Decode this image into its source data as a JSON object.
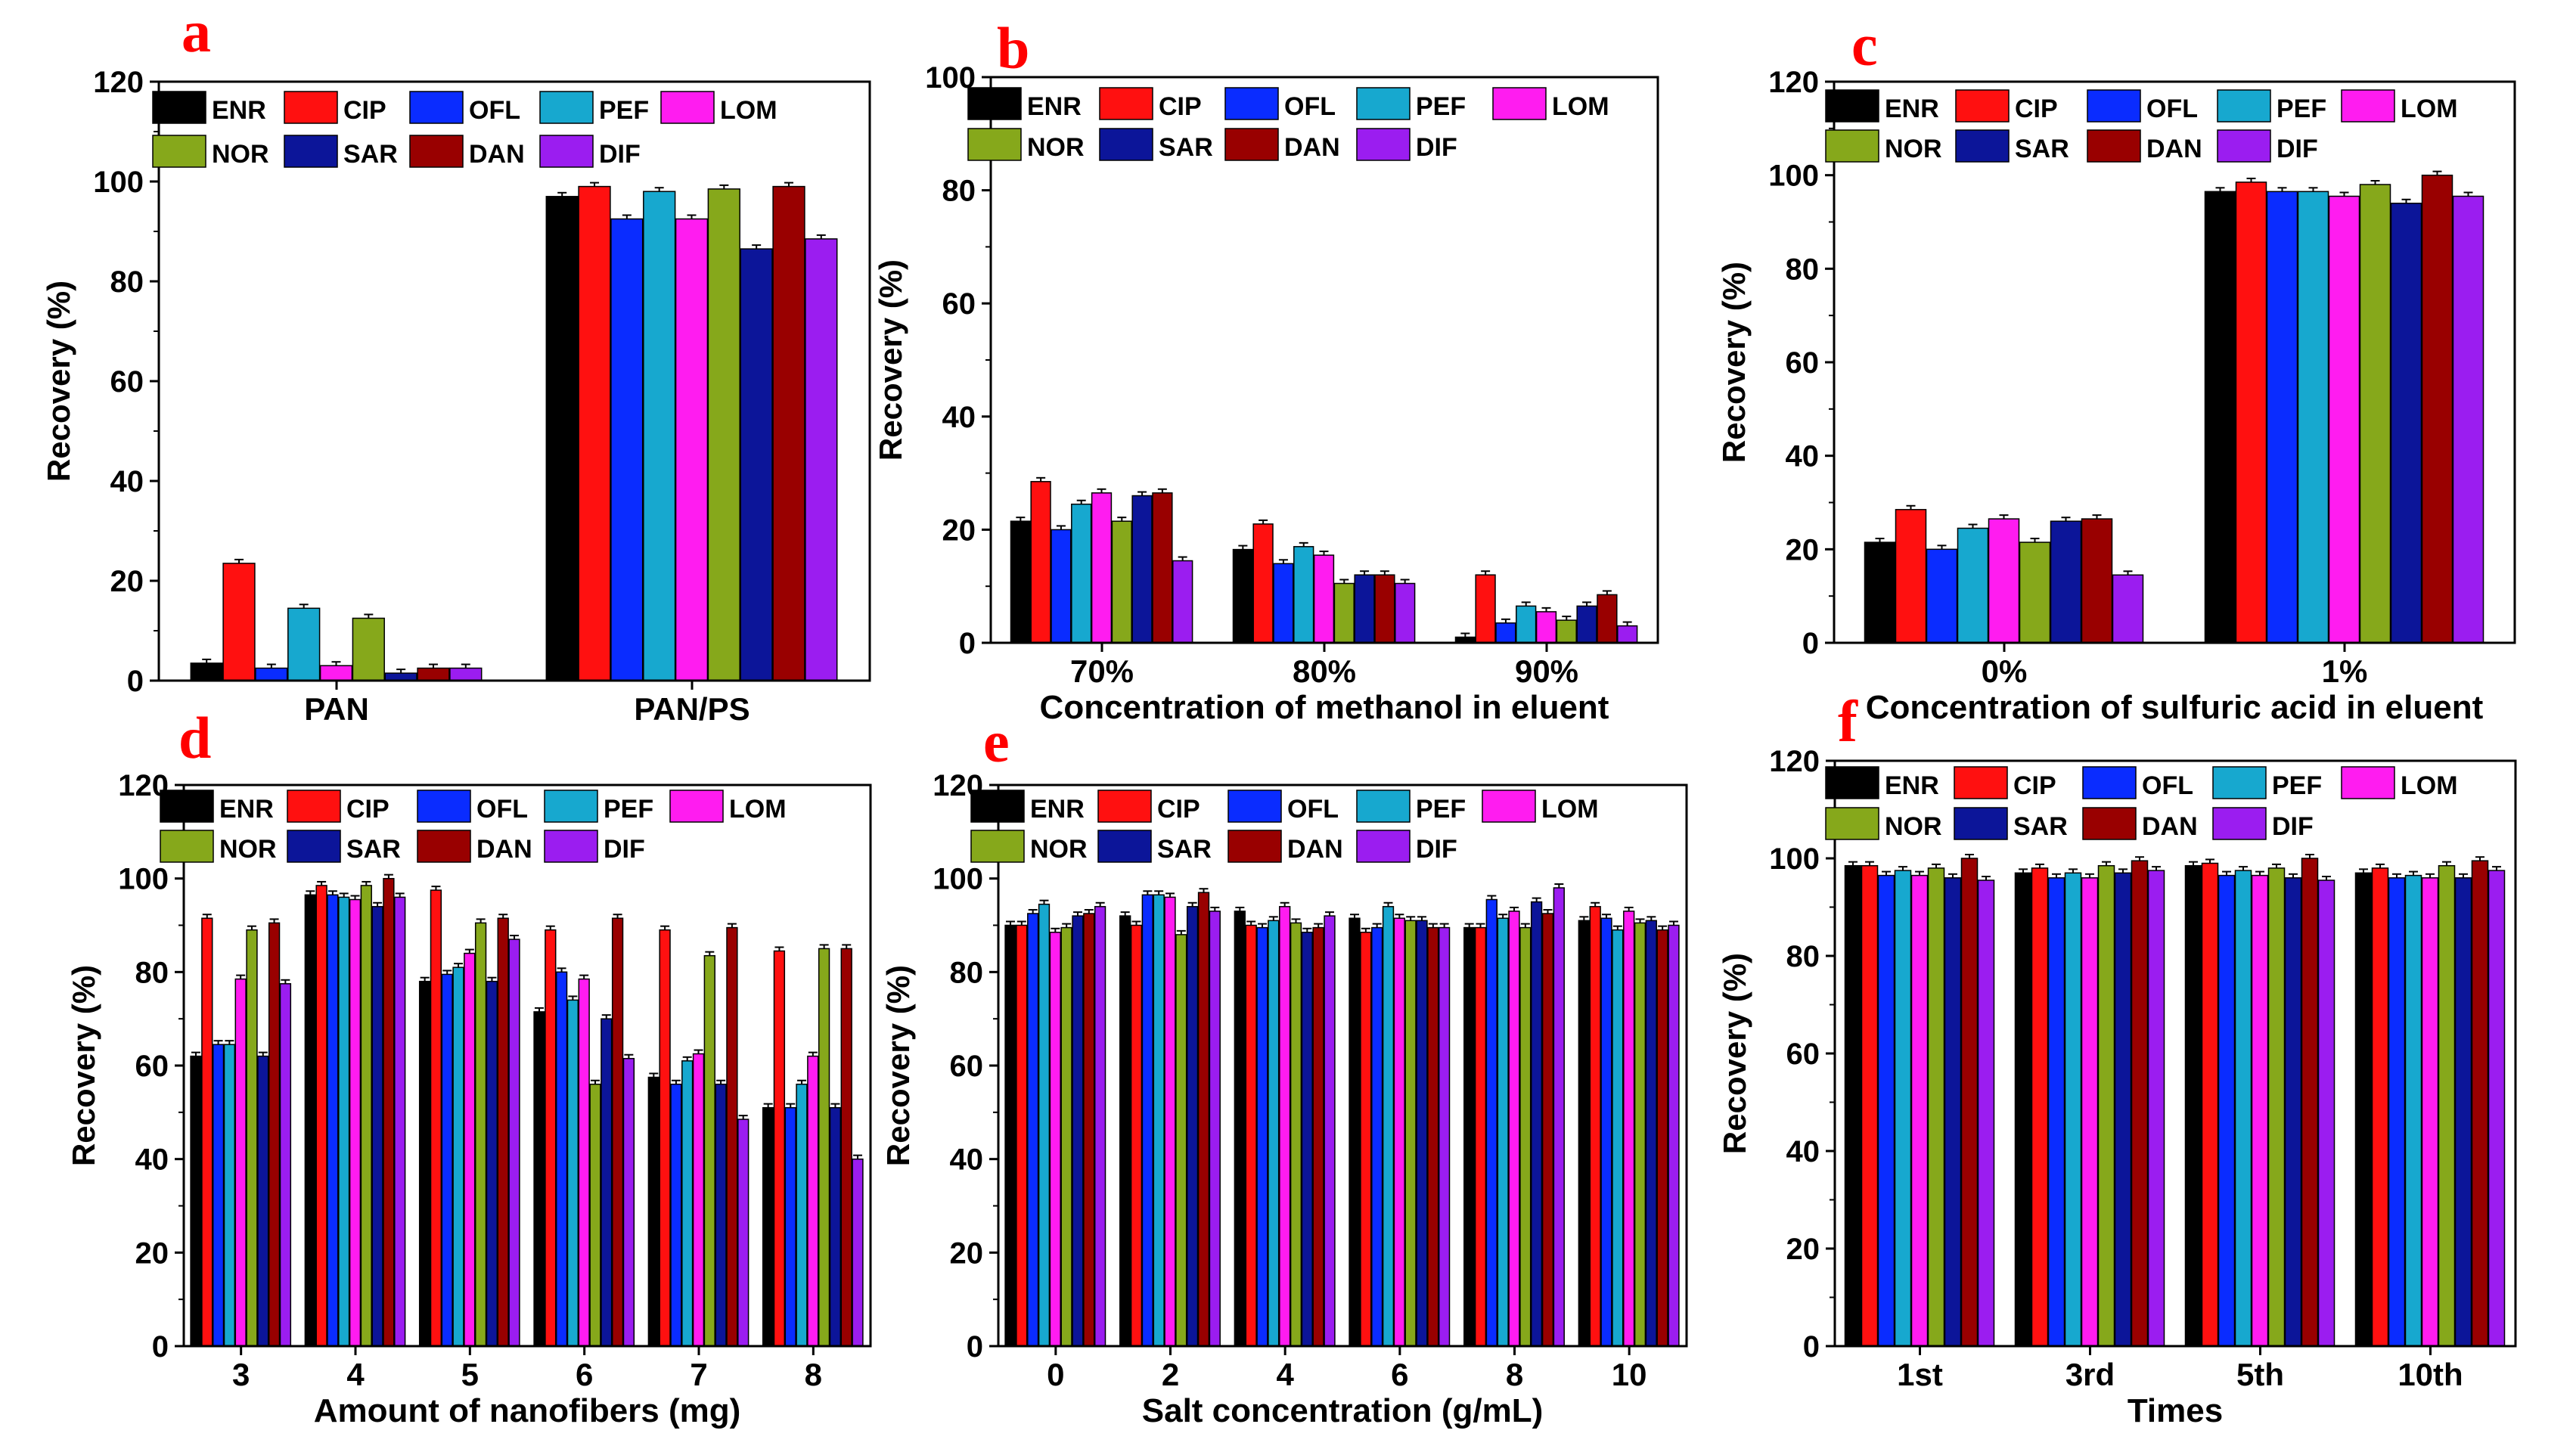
{
  "figure": {
    "series_names": [
      "ENR",
      "CIP",
      "OFL",
      "PEF",
      "LOM",
      "NOR",
      "SAR",
      "DAN",
      "DIF"
    ],
    "colors": {
      "ENR": "#000000",
      "CIP": "#ff1010",
      "OFL": "#0a2cff",
      "PEF": "#17a8cf",
      "LOM": "#ff1cf0",
      "NOR": "#86a81b",
      "SAR": "#0c1599",
      "DAN": "#990000",
      "DIF": "#9b1df0",
      "panel_letter": "#ff0000"
    }
  },
  "chart_data": [
    {
      "panel": "a",
      "type": "bar",
      "title": "",
      "xlabel": "",
      "ylabel": "Recovery (%)",
      "ylim": [
        0,
        120
      ],
      "yticks": [
        0,
        20,
        40,
        60,
        80,
        100,
        120
      ],
      "categories": [
        "PAN",
        "PAN/PS"
      ],
      "legend": [
        "ENR",
        "CIP",
        "OFL",
        "PEF",
        "LOM",
        "NOR",
        "SAR",
        "DAN",
        "DIF"
      ],
      "series": [
        {
          "name": "ENR",
          "values": [
            3.5,
            97
          ]
        },
        {
          "name": "CIP",
          "values": [
            23.5,
            99
          ]
        },
        {
          "name": "OFL",
          "values": [
            2.5,
            92.5
          ]
        },
        {
          "name": "PEF",
          "values": [
            14.5,
            98
          ]
        },
        {
          "name": "LOM",
          "values": [
            3,
            92.5
          ]
        },
        {
          "name": "NOR",
          "values": [
            12.5,
            98.5
          ]
        },
        {
          "name": "SAR",
          "values": [
            1.5,
            86.5
          ]
        },
        {
          "name": "DAN",
          "values": [
            2.5,
            99
          ]
        },
        {
          "name": "DIF",
          "values": [
            2.5,
            88.5
          ]
        }
      ]
    },
    {
      "panel": "b",
      "type": "bar",
      "title": "",
      "xlabel": "Concentration of methanol in eluent",
      "ylabel": "Recovery (%)",
      "ylim": [
        0,
        100
      ],
      "yticks": [
        0,
        20,
        40,
        60,
        80,
        100
      ],
      "categories": [
        "70%",
        "80%",
        "90%"
      ],
      "legend": [
        "ENR",
        "CIP",
        "OFL",
        "PEF",
        "LOM",
        "NOR",
        "SAR",
        "DAN",
        "DIF"
      ],
      "series": [
        {
          "name": "ENR",
          "values": [
            21.5,
            16.5,
            1
          ]
        },
        {
          "name": "CIP",
          "values": [
            28.5,
            21,
            12
          ]
        },
        {
          "name": "OFL",
          "values": [
            20,
            14,
            3.5
          ]
        },
        {
          "name": "PEF",
          "values": [
            24.5,
            17,
            6.5
          ]
        },
        {
          "name": "LOM",
          "values": [
            26.5,
            15.5,
            5.5
          ]
        },
        {
          "name": "NOR",
          "values": [
            21.5,
            10.5,
            4
          ]
        },
        {
          "name": "SAR",
          "values": [
            26,
            12,
            6.5
          ]
        },
        {
          "name": "DAN",
          "values": [
            26.5,
            12,
            8.5
          ]
        },
        {
          "name": "DIF",
          "values": [
            14.5,
            10.5,
            3
          ]
        }
      ]
    },
    {
      "panel": "c",
      "type": "bar",
      "title": "",
      "xlabel": "Concentration of sulfuric acid in eluent",
      "ylabel": "Recovery (%)",
      "ylim": [
        0,
        120
      ],
      "yticks": [
        0,
        20,
        40,
        60,
        80,
        100,
        120
      ],
      "categories": [
        "0%",
        "1%"
      ],
      "legend": [
        "ENR",
        "CIP",
        "OFL",
        "PEF",
        "LOM",
        "NOR",
        "SAR",
        "DAN",
        "DIF"
      ],
      "series": [
        {
          "name": "ENR",
          "values": [
            21.5,
            96.5
          ]
        },
        {
          "name": "CIP",
          "values": [
            28.5,
            98.5
          ]
        },
        {
          "name": "OFL",
          "values": [
            20,
            96.5
          ]
        },
        {
          "name": "PEF",
          "values": [
            24.5,
            96.5
          ]
        },
        {
          "name": "LOM",
          "values": [
            26.5,
            95.5
          ]
        },
        {
          "name": "NOR",
          "values": [
            21.5,
            98
          ]
        },
        {
          "name": "SAR",
          "values": [
            26,
            94
          ]
        },
        {
          "name": "DAN",
          "values": [
            26.5,
            100
          ]
        },
        {
          "name": "DIF",
          "values": [
            14.5,
            95.5
          ]
        }
      ]
    },
    {
      "panel": "d",
      "type": "bar",
      "title": "",
      "xlabel": "Amount of nanofibers (mg)",
      "ylabel": "Recovery (%)",
      "ylim": [
        0,
        120
      ],
      "yticks": [
        0,
        20,
        40,
        60,
        80,
        100,
        120
      ],
      "categories": [
        "3",
        "4",
        "5",
        "6",
        "7",
        "8"
      ],
      "legend": [
        "ENR",
        "CIP",
        "OFL",
        "PEF",
        "LOM",
        "NOR",
        "SAR",
        "DAN",
        "DIF"
      ],
      "series": [
        {
          "name": "ENR",
          "values": [
            62,
            96.5,
            78,
            71.5,
            57.5,
            51
          ]
        },
        {
          "name": "CIP",
          "values": [
            91.5,
            98.5,
            97.5,
            89,
            89,
            84.5
          ]
        },
        {
          "name": "OFL",
          "values": [
            64.5,
            96.5,
            79.5,
            80,
            56,
            51
          ]
        },
        {
          "name": "PEF",
          "values": [
            64.5,
            96,
            81,
            74,
            61,
            56
          ]
        },
        {
          "name": "LOM",
          "values": [
            78.5,
            95.5,
            84,
            78.5,
            62.5,
            62
          ]
        },
        {
          "name": "NOR",
          "values": [
            89,
            98.5,
            90.5,
            56,
            83.5,
            85
          ]
        },
        {
          "name": "SAR",
          "values": [
            62,
            94,
            78,
            70,
            56,
            51
          ]
        },
        {
          "name": "DAN",
          "values": [
            90.5,
            100,
            91.5,
            91.5,
            89.5,
            85
          ]
        },
        {
          "name": "DIF",
          "values": [
            77.5,
            96,
            87,
            61.5,
            48.5,
            40
          ]
        }
      ]
    },
    {
      "panel": "e",
      "type": "bar",
      "title": "",
      "xlabel": "Salt concentration (g/mL)",
      "ylabel": "Recovery (%)",
      "ylim": [
        0,
        120
      ],
      "yticks": [
        0,
        20,
        40,
        60,
        80,
        100,
        120
      ],
      "categories": [
        "0",
        "2",
        "4",
        "6",
        "8",
        "10"
      ],
      "legend": [
        "ENR",
        "CIP",
        "OFL",
        "PEF",
        "LOM",
        "NOR",
        "SAR",
        "DAN",
        "DIF"
      ],
      "series": [
        {
          "name": "ENR",
          "values": [
            90,
            92,
            93,
            91.5,
            89.5,
            91
          ]
        },
        {
          "name": "CIP",
          "values": [
            90,
            90,
            90,
            88.5,
            89.5,
            94
          ]
        },
        {
          "name": "OFL",
          "values": [
            92.5,
            96.5,
            89.5,
            89.5,
            95.5,
            91.5
          ]
        },
        {
          "name": "PEF",
          "values": [
            94.5,
            96.5,
            91,
            94,
            91.5,
            89
          ]
        },
        {
          "name": "LOM",
          "values": [
            88.5,
            96,
            94,
            91.5,
            93,
            93
          ]
        },
        {
          "name": "NOR",
          "values": [
            89.5,
            88,
            90.5,
            91,
            89.5,
            90.5
          ]
        },
        {
          "name": "SAR",
          "values": [
            92,
            94,
            88.5,
            91,
            95,
            91
          ]
        },
        {
          "name": "DAN",
          "values": [
            92.5,
            97,
            89.5,
            89.5,
            92.5,
            89
          ]
        },
        {
          "name": "DIF",
          "values": [
            94,
            93,
            92,
            89.5,
            98,
            90
          ]
        }
      ]
    },
    {
      "panel": "f",
      "type": "bar",
      "title": "",
      "xlabel": "Times",
      "ylabel": "Recovery (%)",
      "ylim": [
        0,
        120
      ],
      "yticks": [
        0,
        20,
        40,
        60,
        80,
        100,
        120
      ],
      "categories": [
        "1st",
        "3rd",
        "5th",
        "10th"
      ],
      "legend": [
        "ENR",
        "CIP",
        "OFL",
        "PEF",
        "LOM",
        "NOR",
        "SAR",
        "DAN",
        "DIF"
      ],
      "series": [
        {
          "name": "ENR",
          "values": [
            98.5,
            97,
            98.5,
            97
          ]
        },
        {
          "name": "CIP",
          "values": [
            98.5,
            98,
            99,
            98
          ]
        },
        {
          "name": "OFL",
          "values": [
            96.5,
            96,
            96.5,
            96
          ]
        },
        {
          "name": "PEF",
          "values": [
            97.5,
            97,
            97.5,
            96.5
          ]
        },
        {
          "name": "LOM",
          "values": [
            96.5,
            96,
            96.5,
            96
          ]
        },
        {
          "name": "NOR",
          "values": [
            98,
            98.5,
            98,
            98.5
          ]
        },
        {
          "name": "SAR",
          "values": [
            96,
            97,
            96,
            96
          ]
        },
        {
          "name": "DAN",
          "values": [
            100,
            99.5,
            100,
            99.5
          ]
        },
        {
          "name": "DIF",
          "values": [
            95.5,
            97.5,
            95.5,
            97.5
          ]
        }
      ]
    }
  ]
}
